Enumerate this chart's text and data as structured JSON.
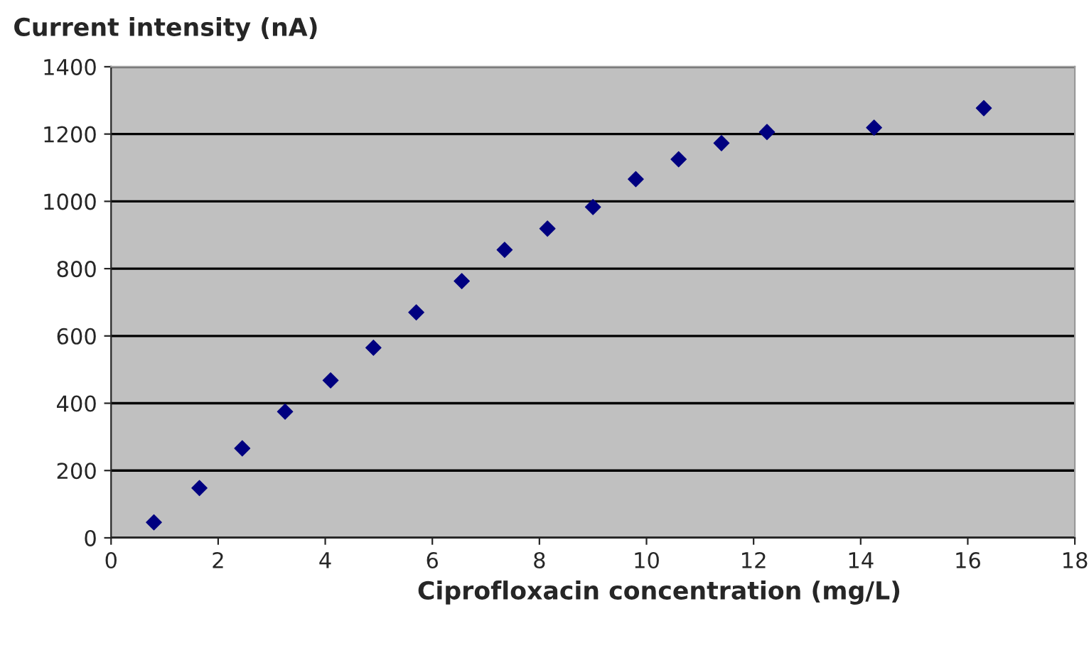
{
  "chart_data": {
    "type": "scatter",
    "ylabel": "Current intensity (nA)",
    "xlabel": "Ciprofloxacin concentration (mg/L)",
    "x": [
      0.8,
      1.65,
      2.45,
      3.25,
      4.1,
      4.9,
      5.7,
      6.55,
      7.35,
      8.15,
      9.0,
      9.8,
      10.6,
      11.4,
      12.25,
      14.25,
      16.3
    ],
    "series": [
      {
        "color": "#000080",
        "values": [
          46,
          148,
          266,
          375,
          468,
          565,
          670,
          763,
          856,
          919,
          983,
          1066,
          1125,
          1173,
          1206,
          1219,
          1277
        ]
      }
    ],
    "xlim": [
      0,
      18
    ],
    "xticks": [
      0,
      2,
      4,
      6,
      8,
      10,
      12,
      14,
      16,
      18
    ],
    "ylim": [
      0,
      1400
    ],
    "yticks": [
      0,
      200,
      400,
      600,
      800,
      1000,
      1200,
      1400
    ],
    "grid": "y",
    "marker": "diamond"
  }
}
